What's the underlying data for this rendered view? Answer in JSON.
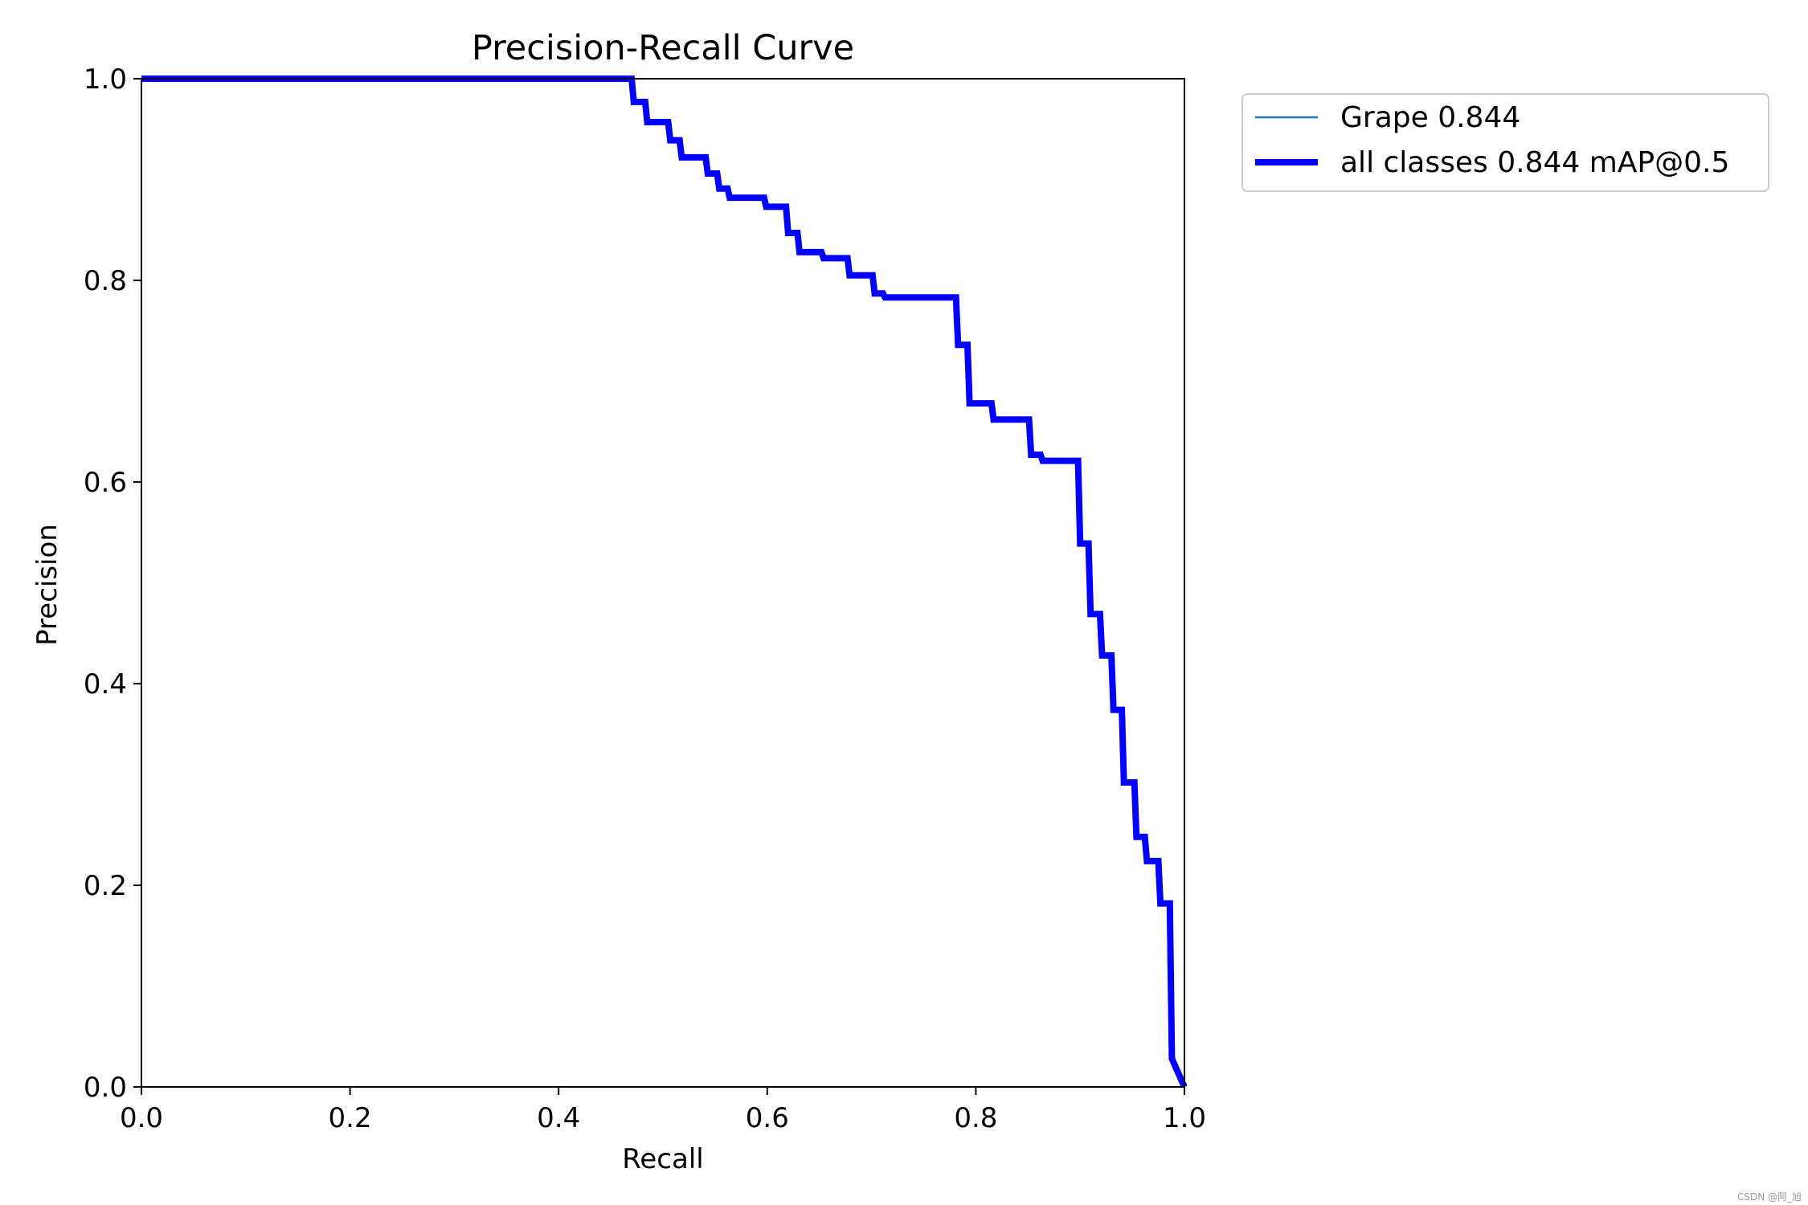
{
  "chart_data": {
    "type": "line",
    "title": "Precision-Recall Curve",
    "xlabel": "Recall",
    "ylabel": "Precision",
    "xlim": [
      0,
      1
    ],
    "ylim": [
      0,
      1
    ],
    "x_ticks": [
      "0.0",
      "0.2",
      "0.4",
      "0.6",
      "0.8",
      "1.0"
    ],
    "y_ticks": [
      "0.0",
      "0.2",
      "0.4",
      "0.6",
      "0.8",
      "1.0"
    ],
    "grid": false,
    "legend_position": "outside top-right",
    "series": [
      {
        "name": "Grape 0.844",
        "color": "#1f77b4",
        "points": [
          [
            0.0,
            1.0
          ],
          [
            0.47,
            1.0
          ],
          [
            0.472,
            0.977
          ],
          [
            0.483,
            0.977
          ],
          [
            0.485,
            0.957
          ],
          [
            0.505,
            0.957
          ],
          [
            0.507,
            0.939
          ],
          [
            0.516,
            0.939
          ],
          [
            0.518,
            0.922
          ],
          [
            0.541,
            0.922
          ],
          [
            0.543,
            0.906
          ],
          [
            0.552,
            0.906
          ],
          [
            0.554,
            0.891
          ],
          [
            0.562,
            0.891
          ],
          [
            0.564,
            0.882
          ],
          [
            0.597,
            0.882
          ],
          [
            0.599,
            0.873
          ],
          [
            0.618,
            0.873
          ],
          [
            0.62,
            0.847
          ],
          [
            0.629,
            0.847
          ],
          [
            0.631,
            0.828
          ],
          [
            0.652,
            0.828
          ],
          [
            0.654,
            0.822
          ],
          [
            0.677,
            0.822
          ],
          [
            0.679,
            0.805
          ],
          [
            0.701,
            0.805
          ],
          [
            0.703,
            0.787
          ],
          [
            0.711,
            0.787
          ],
          [
            0.713,
            0.783
          ],
          [
            0.781,
            0.783
          ],
          [
            0.783,
            0.736
          ],
          [
            0.792,
            0.736
          ],
          [
            0.794,
            0.678
          ],
          [
            0.815,
            0.678
          ],
          [
            0.817,
            0.662
          ],
          [
            0.851,
            0.662
          ],
          [
            0.853,
            0.627
          ],
          [
            0.862,
            0.627
          ],
          [
            0.864,
            0.621
          ],
          [
            0.898,
            0.621
          ],
          [
            0.9,
            0.539
          ],
          [
            0.908,
            0.539
          ],
          [
            0.91,
            0.469
          ],
          [
            0.919,
            0.469
          ],
          [
            0.921,
            0.428
          ],
          [
            0.93,
            0.428
          ],
          [
            0.932,
            0.374
          ],
          [
            0.94,
            0.374
          ],
          [
            0.942,
            0.302
          ],
          [
            0.952,
            0.302
          ],
          [
            0.954,
            0.248
          ],
          [
            0.962,
            0.248
          ],
          [
            0.964,
            0.224
          ],
          [
            0.975,
            0.224
          ],
          [
            0.977,
            0.182
          ],
          [
            0.986,
            0.182
          ],
          [
            0.988,
            0.028
          ],
          [
            1.0,
            0.0
          ]
        ]
      },
      {
        "name": "all classes 0.844 mAP@0.5",
        "color": "#0000ff",
        "points": [
          [
            0.0,
            1.0
          ],
          [
            0.47,
            1.0
          ],
          [
            0.472,
            0.977
          ],
          [
            0.483,
            0.977
          ],
          [
            0.485,
            0.957
          ],
          [
            0.505,
            0.957
          ],
          [
            0.507,
            0.939
          ],
          [
            0.516,
            0.939
          ],
          [
            0.518,
            0.922
          ],
          [
            0.541,
            0.922
          ],
          [
            0.543,
            0.906
          ],
          [
            0.552,
            0.906
          ],
          [
            0.554,
            0.891
          ],
          [
            0.562,
            0.891
          ],
          [
            0.564,
            0.882
          ],
          [
            0.597,
            0.882
          ],
          [
            0.599,
            0.873
          ],
          [
            0.618,
            0.873
          ],
          [
            0.62,
            0.847
          ],
          [
            0.629,
            0.847
          ],
          [
            0.631,
            0.828
          ],
          [
            0.652,
            0.828
          ],
          [
            0.654,
            0.822
          ],
          [
            0.677,
            0.822
          ],
          [
            0.679,
            0.805
          ],
          [
            0.701,
            0.805
          ],
          [
            0.703,
            0.787
          ],
          [
            0.711,
            0.787
          ],
          [
            0.713,
            0.783
          ],
          [
            0.781,
            0.783
          ],
          [
            0.783,
            0.736
          ],
          [
            0.792,
            0.736
          ],
          [
            0.794,
            0.678
          ],
          [
            0.815,
            0.678
          ],
          [
            0.817,
            0.662
          ],
          [
            0.851,
            0.662
          ],
          [
            0.853,
            0.627
          ],
          [
            0.862,
            0.627
          ],
          [
            0.864,
            0.621
          ],
          [
            0.898,
            0.621
          ],
          [
            0.9,
            0.539
          ],
          [
            0.908,
            0.539
          ],
          [
            0.91,
            0.469
          ],
          [
            0.919,
            0.469
          ],
          [
            0.921,
            0.428
          ],
          [
            0.93,
            0.428
          ],
          [
            0.932,
            0.374
          ],
          [
            0.94,
            0.374
          ],
          [
            0.942,
            0.302
          ],
          [
            0.952,
            0.302
          ],
          [
            0.954,
            0.248
          ],
          [
            0.962,
            0.248
          ],
          [
            0.964,
            0.224
          ],
          [
            0.975,
            0.224
          ],
          [
            0.977,
            0.182
          ],
          [
            0.986,
            0.182
          ],
          [
            0.988,
            0.028
          ],
          [
            1.0,
            0.0
          ]
        ]
      }
    ]
  },
  "watermark": "CSDN @阿_旭"
}
